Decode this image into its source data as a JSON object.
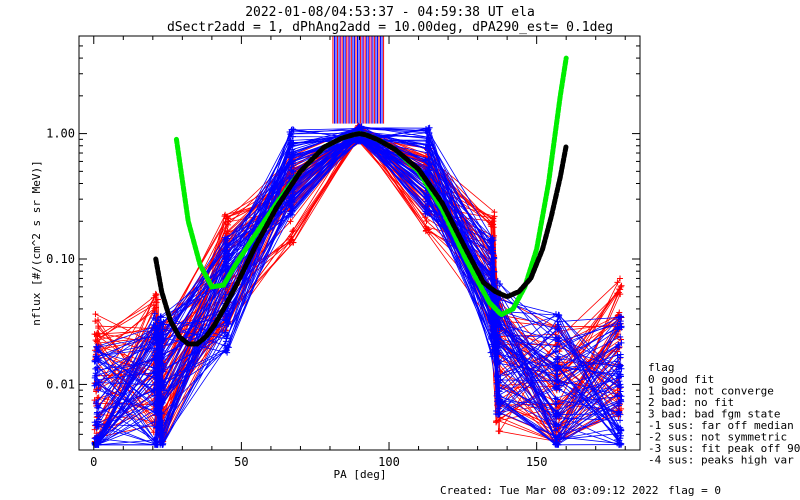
{
  "chart_data": {
    "type": "line",
    "title_line1": "2022-01-08/04:53:37 - 04:59:38 UT ela",
    "title_line2": "dSectr2add = 1, dPhAng2add = 10.00deg, dPA290_est=   0.1deg",
    "xlabel": "PA [deg]",
    "ylabel": "nflux [#/(cm^2 s sr MeV)]",
    "xlim": [
      -5,
      185
    ],
    "ylim": [
      0.003,
      6.0
    ],
    "yscale": "log",
    "x_ticks": [
      0,
      50,
      100,
      150
    ],
    "x_tick_labels": [
      "0",
      "50",
      "100",
      "150"
    ],
    "y_ticks": [
      0.01,
      0.1,
      1.0
    ],
    "y_tick_labels": [
      "0.01",
      "0.10",
      "1.00"
    ],
    "grid": false,
    "colors": {
      "red_spectra": "#ff0000",
      "blue_spectra": "#0000ff",
      "green_fit": "#00ee00",
      "black_fit": "#000000"
    },
    "series": [
      {
        "color": "green",
        "x": [
          28,
          32,
          36,
          40,
          44,
          48,
          55,
          62,
          70,
          78,
          84,
          88,
          90,
          92,
          96,
          102,
          110,
          118,
          126,
          134,
          138,
          142,
          146,
          150,
          154,
          158,
          160
        ],
        "y": [
          0.9,
          0.2,
          0.09,
          0.06,
          0.062,
          0.09,
          0.16,
          0.28,
          0.5,
          0.78,
          0.92,
          0.98,
          1.0,
          0.98,
          0.9,
          0.75,
          0.5,
          0.25,
          0.1,
          0.045,
          0.036,
          0.04,
          0.06,
          0.12,
          0.4,
          2.0,
          4.0
        ]
      },
      {
        "color": "black",
        "x": [
          21,
          23,
          26,
          29,
          32,
          35,
          38,
          41,
          44,
          48,
          55,
          62,
          70,
          78,
          84,
          88,
          90,
          92,
          96,
          102,
          110,
          118,
          126,
          132,
          136,
          140,
          144,
          148,
          152,
          155,
          158,
          160
        ],
        "y": [
          0.1,
          0.055,
          0.032,
          0.024,
          0.021,
          0.021,
          0.024,
          0.03,
          0.04,
          0.06,
          0.13,
          0.26,
          0.5,
          0.78,
          0.92,
          0.98,
          1.0,
          0.98,
          0.9,
          0.75,
          0.52,
          0.28,
          0.12,
          0.065,
          0.055,
          0.05,
          0.055,
          0.07,
          0.12,
          0.22,
          0.45,
          0.8
        ]
      }
    ],
    "spectra": {
      "note": "many overlapping red/blue spectral traces with + markers between PA 0 and 180 deg",
      "pa_samples": [
        1,
        21,
        23,
        45,
        67,
        90,
        113,
        135,
        137,
        157,
        178
      ],
      "blue_mid_values": [
        0.006,
        0.01,
        0.01,
        0.05,
        0.5,
        1.0,
        0.5,
        0.05,
        0.02,
        0.01,
        0.01
      ],
      "red_mid_values": [
        0.01,
        0.015,
        0.008,
        0.08,
        0.3,
        1.0,
        0.35,
        0.08,
        0.015,
        0.008,
        0.02
      ]
    },
    "legend": {
      "placement": "right",
      "title": "flag",
      "items": [
        " 0 good fit",
        " 1 bad: not converge",
        " 2 bad: no fit",
        " 3 bad: bad fgm state",
        "-1 sus: far off median",
        "-2 sus: not symmetric",
        "-3 sus: fit peak off 90",
        "-4 sus: peaks high var"
      ]
    }
  },
  "footer": {
    "created": "Created: Tue Mar 08 03:09:12 2022",
    "flag": "flag = 0"
  }
}
